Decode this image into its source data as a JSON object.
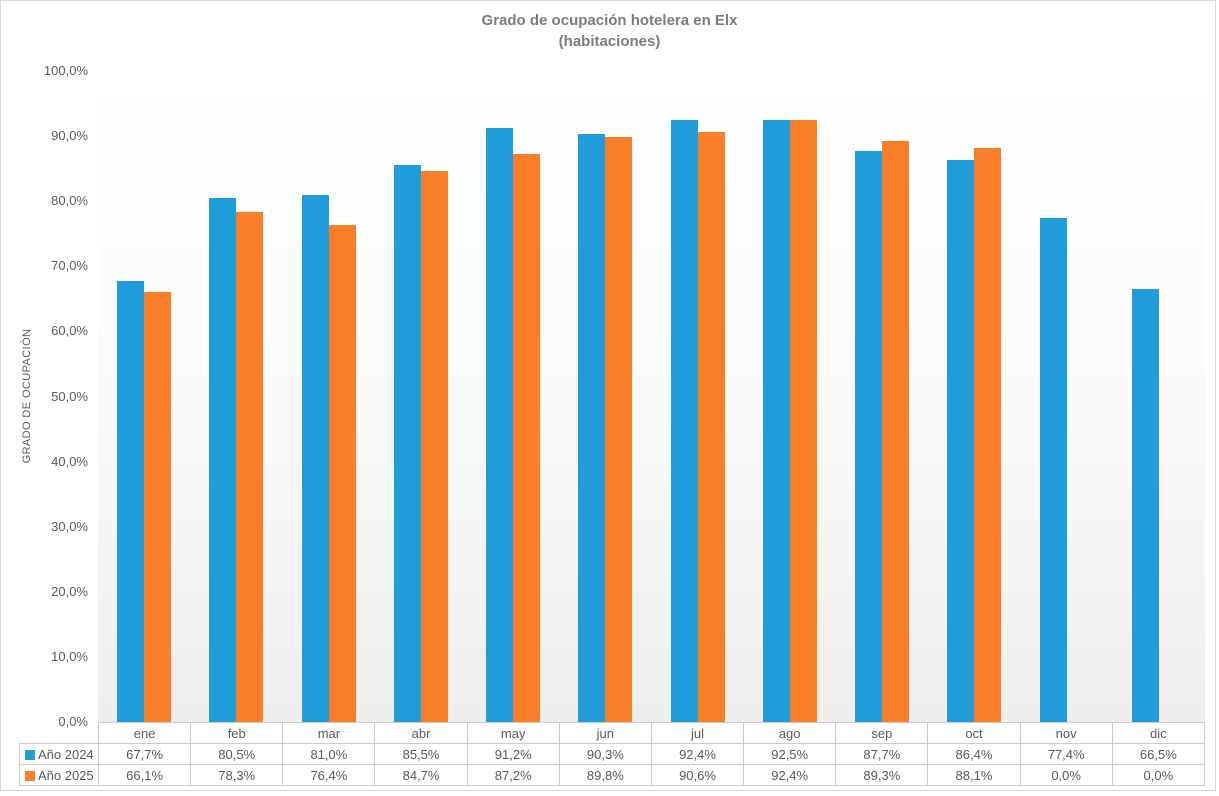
{
  "title": {
    "line1": "Grado de ocupación hotelera en Elx",
    "line2": "(habitaciones)"
  },
  "colors": {
    "series_2024": "#1f9cd9",
    "series_2025": "#f97e27",
    "title_text": "#7c7c7c",
    "axis_text": "#595959",
    "table_border": "#cbcbcb",
    "frame_border": "#d6d6d6"
  },
  "chart_data": {
    "type": "bar",
    "title": "Grado de ocupación hotelera en Elx (habitaciones)",
    "xlabel": "",
    "ylabel": "GRADO DE OCUPACIÓN",
    "ylim": [
      0,
      100
    ],
    "grid": false,
    "legend_position": "table-left",
    "y_tick_labels": [
      "100,0%",
      "90,0%",
      "80,0%",
      "70,0%",
      "60,0%",
      "50,0%",
      "40,0%",
      "30,0%",
      "20,0%",
      "10,0%",
      "0,0%"
    ],
    "categories": [
      "ene",
      "feb",
      "mar",
      "abr",
      "may",
      "jun",
      "jul",
      "ago",
      "sep",
      "oct",
      "nov",
      "dic"
    ],
    "series": [
      {
        "name": "Año 2024",
        "color": "#1f9cd9",
        "values": [
          67.7,
          80.5,
          81.0,
          85.5,
          91.2,
          90.3,
          92.4,
          92.5,
          87.7,
          86.4,
          77.4,
          66.5
        ],
        "labels": [
          "67,7%",
          "80,5%",
          "81,0%",
          "85,5%",
          "91,2%",
          "90,3%",
          "92,4%",
          "92,5%",
          "87,7%",
          "86,4%",
          "77,4%",
          "66,5%"
        ]
      },
      {
        "name": "Año 2025",
        "color": "#f97e27",
        "values": [
          66.1,
          78.3,
          76.4,
          84.7,
          87.2,
          89.8,
          90.6,
          92.4,
          89.3,
          88.1,
          0.0,
          0.0
        ],
        "labels": [
          "66,1%",
          "78,3%",
          "76,4%",
          "84,7%",
          "87,2%",
          "89,8%",
          "90,6%",
          "92,4%",
          "89,3%",
          "88,1%",
          "0,0%",
          "0,0%"
        ]
      }
    ]
  }
}
